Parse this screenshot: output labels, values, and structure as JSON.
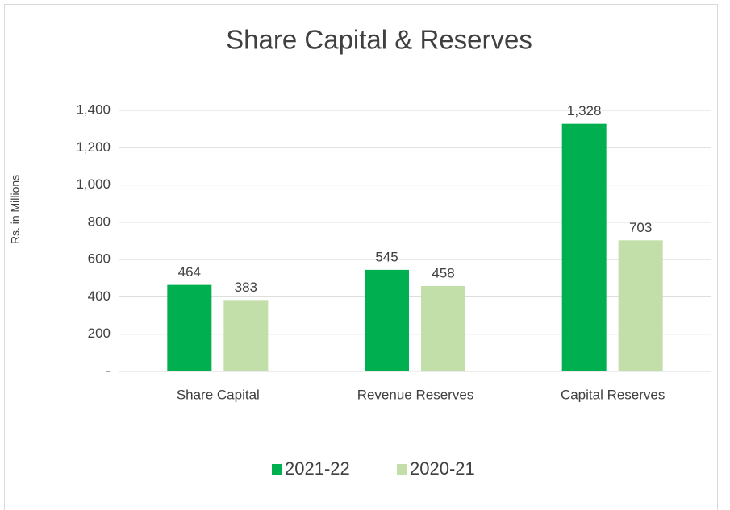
{
  "chart_data": {
    "type": "bar",
    "title": "Share Capital & Reserves",
    "y_label": "Rs. in Millions",
    "categories": [
      "Share Capital",
      "Revenue Reserves",
      "Capital Reserves"
    ],
    "series": [
      {
        "name": "2021-22",
        "color": "#00b050",
        "values": [
          464,
          545,
          1328
        ],
        "value_labels": [
          "464",
          "545",
          "1,328"
        ]
      },
      {
        "name": "2020-21",
        "color": "#c3dfa9",
        "values": [
          383,
          458,
          703
        ]
      }
    ],
    "ylim": [
      0,
      1400
    ],
    "yticks": [
      {
        "value": 0,
        "label": "-"
      },
      200,
      400,
      600,
      800,
      {
        "value": 1000,
        "label": "1,000"
      },
      {
        "value": 1200,
        "label": "1,200"
      },
      {
        "value": 1400,
        "label": "1,400"
      }
    ],
    "grid": true,
    "legend": "bottom"
  }
}
